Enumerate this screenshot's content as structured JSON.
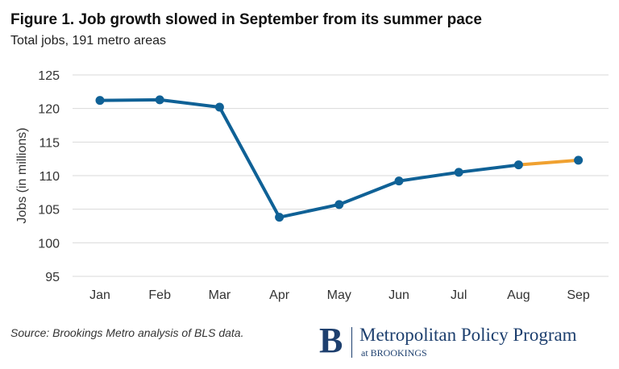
{
  "source": "Source: Brookings Metro analysis of BLS data.",
  "logo": {
    "mark": "B",
    "name": "Metropolitan Policy Program",
    "sub": "at BROOKINGS",
    "color": "#1d3f6e"
  },
  "chart_data": {
    "type": "line",
    "title": "Figure 1. Job growth slowed in September from its summer pace",
    "subtitle": "Total jobs, 191 metro areas",
    "xlabel": "",
    "ylabel": "Jobs (in millions)",
    "categories": [
      "Jan",
      "Feb",
      "Mar",
      "Apr",
      "May",
      "Jun",
      "Jul",
      "Aug",
      "Sep"
    ],
    "values": [
      121.2,
      121.3,
      120.2,
      103.8,
      105.7,
      109.2,
      110.5,
      111.6,
      112.3
    ],
    "ylim": [
      95,
      125
    ],
    "yticks": [
      95,
      100,
      105,
      110,
      115,
      120,
      125
    ],
    "grid": true,
    "colors": {
      "main": "#0f6196",
      "highlight": "#f0a130",
      "grid": "#d9d9d9"
    },
    "highlight_segment": {
      "from": "Aug",
      "to": "Sep"
    }
  }
}
